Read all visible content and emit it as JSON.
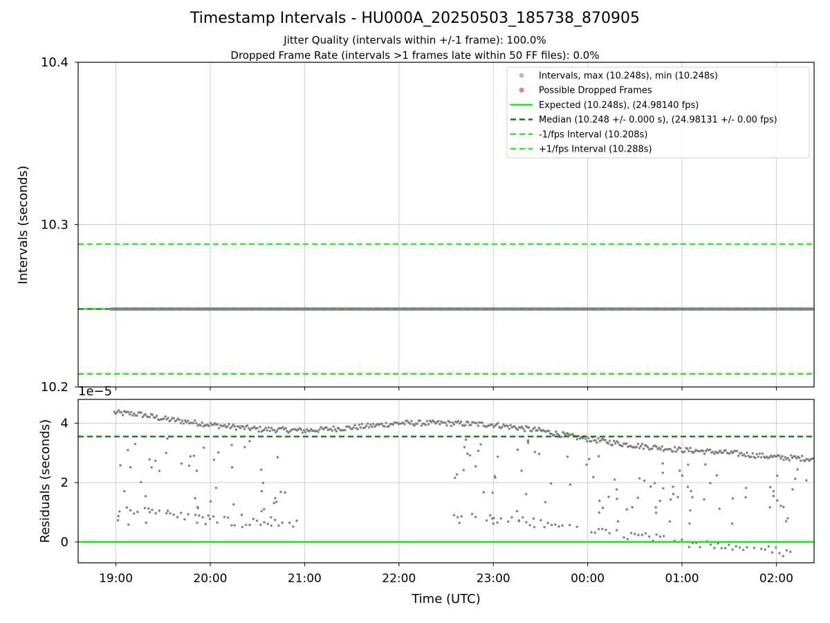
{
  "title": "Timestamp Intervals - HU000A_20250503_185738_870905",
  "subtitle_lines": [
    "Jitter Quality (intervals within +/-1 frame): 100.0%",
    "Dropped Frame Rate (intervals >1 frames late within 50 FF files): 0.0%"
  ],
  "colors": {
    "points": "#808080",
    "dropped": "#ff0000",
    "expected": "#00ee00",
    "median": "#007700",
    "bound": "#22ee22",
    "grid": "#cccccc"
  },
  "chart_data": [
    {
      "type": "scatter",
      "xlabel": "",
      "ylabel": "Intervals (seconds)",
      "ylim": [
        10.2,
        10.4
      ],
      "y_ticks": [
        "10.2",
        "10.3",
        "10.4"
      ],
      "x_range": [
        "18:36",
        "02:24"
      ],
      "grid": true,
      "legend_placement": "top-right",
      "legend": [
        "Intervals, max (10.248s), min (10.248s)",
        "Possible Dropped Frames",
        "Expected (10.248s), (24.98140 fps)",
        "Median (10.248 +/- 0.000 s), (24.98131 +/- 0.00 fps)",
        "-1/fps Interval (10.208s)",
        "+1/fps Interval (10.288s)"
      ],
      "series": [
        {
          "name": "Intervals, max (10.248s), min (10.248s)",
          "x_start": "18:57",
          "x_end": "02:24",
          "y": 10.248
        },
        {
          "name": "Expected (10.248s), (24.98140 fps)",
          "y": 10.248
        },
        {
          "name": "Median (10.248 +/- 0.000 s), (24.98131 +/- 0.00 fps)",
          "y": 10.248
        },
        {
          "name": "-1/fps Interval (10.208s)",
          "y": 10.208
        },
        {
          "name": "+1/fps Interval (10.288s)",
          "y": 10.288
        }
      ]
    },
    {
      "type": "scatter",
      "xlabel": "Time (UTC)",
      "ylabel": "Residuals (seconds)",
      "y_offset_label": "1e−5",
      "ylim": [
        -0.7,
        4.8
      ],
      "y_ticks": [
        "0",
        "2",
        "4"
      ],
      "x_ticks": [
        "19:00",
        "20:00",
        "21:00",
        "22:00",
        "23:00",
        "00:00",
        "01:00",
        "02:00"
      ],
      "x_range": [
        "18:36",
        "02:24"
      ],
      "grid": true,
      "expected_residual": 0,
      "median_residual": 3.55,
      "residual_band_upper": [
        [
          "19:00",
          4.35
        ],
        [
          "19:15",
          4.3
        ],
        [
          "19:30",
          4.15
        ],
        [
          "19:45",
          4.05
        ],
        [
          "20:00",
          3.95
        ],
        [
          "20:30",
          3.8
        ],
        [
          "21:00",
          3.75
        ],
        [
          "21:30",
          3.85
        ],
        [
          "22:00",
          4.0
        ],
        [
          "22:30",
          4.0
        ],
        [
          "23:00",
          3.95
        ],
        [
          "23:30",
          3.75
        ],
        [
          "23:50",
          3.55
        ],
        [
          "00:15",
          3.35
        ],
        [
          "00:30",
          3.25
        ],
        [
          "01:00",
          3.1
        ],
        [
          "01:30",
          3.0
        ],
        [
          "02:00",
          2.85
        ],
        [
          "02:24",
          2.8
        ]
      ],
      "residual_band_lower_early": [
        [
          "19:00",
          1.2
        ],
        [
          "19:15",
          1.05
        ],
        [
          "19:30",
          0.95
        ],
        [
          "19:45",
          0.85
        ],
        [
          "20:00",
          0.75
        ],
        [
          "20:15",
          0.7
        ],
        [
          "20:30",
          0.65
        ],
        [
          "20:45",
          0.6
        ],
        [
          "21:00",
          0.55
        ]
      ],
      "residual_band_lower_late": [
        [
          "22:35",
          0.85
        ],
        [
          "23:00",
          0.75
        ],
        [
          "23:30",
          0.65
        ],
        [
          "23:50",
          0.5
        ],
        [
          "00:10",
          0.3
        ],
        [
          "00:30",
          0.2
        ],
        [
          "00:45",
          0.1
        ],
        [
          "01:00",
          0.0
        ],
        [
          "01:20",
          -0.1
        ],
        [
          "01:40",
          -0.2
        ],
        [
          "02:00",
          -0.3
        ],
        [
          "02:10",
          -0.4
        ]
      ]
    }
  ]
}
